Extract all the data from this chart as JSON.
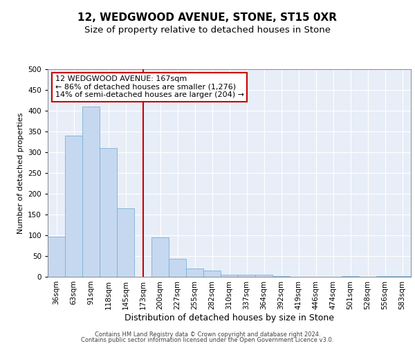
{
  "title1": "12, WEDGWOOD AVENUE, STONE, ST15 0XR",
  "title2": "Size of property relative to detached houses in Stone",
  "xlabel": "Distribution of detached houses by size in Stone",
  "ylabel": "Number of detached properties",
  "categories": [
    "36sqm",
    "63sqm",
    "91sqm",
    "118sqm",
    "145sqm",
    "173sqm",
    "200sqm",
    "227sqm",
    "255sqm",
    "282sqm",
    "310sqm",
    "337sqm",
    "364sqm",
    "392sqm",
    "419sqm",
    "446sqm",
    "474sqm",
    "501sqm",
    "528sqm",
    "556sqm",
    "583sqm"
  ],
  "values": [
    97,
    340,
    410,
    310,
    165,
    0,
    95,
    43,
    20,
    15,
    5,
    5,
    5,
    1,
    0,
    0,
    0,
    1,
    0,
    1,
    1
  ],
  "bar_color": "#c5d8f0",
  "bar_edge_color": "#7aafd4",
  "background_color": "#e8eef8",
  "grid_color": "#ffffff",
  "vline_x": 5.0,
  "vline_color": "#cc0000",
  "annotation_text": "12 WEDGWOOD AVENUE: 167sqm\n← 86% of detached houses are smaller (1,276)\n14% of semi-detached houses are larger (204) →",
  "annotation_box_color": "#ffffff",
  "annotation_box_edge_color": "#cc0000",
  "ylim": [
    0,
    500
  ],
  "yticks": [
    0,
    50,
    100,
    150,
    200,
    250,
    300,
    350,
    400,
    450,
    500
  ],
  "footer1": "Contains HM Land Registry data © Crown copyright and database right 2024.",
  "footer2": "Contains public sector information licensed under the Open Government Licence v3.0.",
  "title1_fontsize": 11,
  "title2_fontsize": 9.5,
  "xlabel_fontsize": 9,
  "ylabel_fontsize": 8,
  "tick_fontsize": 7.5,
  "annotation_fontsize": 8
}
